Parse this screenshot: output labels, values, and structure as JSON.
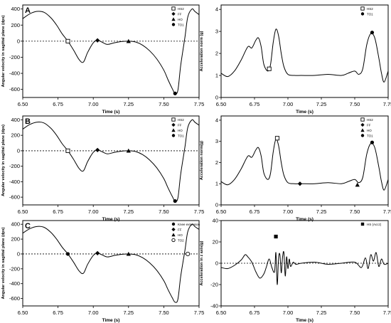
{
  "chart_data": [
    {
      "type": "line",
      "panel_label": "A",
      "xlabel": "Time (s)",
      "ylabel": "Angular velocity in sagittal plane (dps)",
      "xlim": [
        6.5,
        7.75
      ],
      "ylim": [
        -700,
        450
      ],
      "xticks": [
        "6.50",
        "6.75",
        "7.00",
        "7.25",
        "7.50",
        "7.75"
      ],
      "yticks": [
        "400",
        "200",
        "0",
        "-200",
        "-400",
        "-600"
      ],
      "ytick_values": [
        400,
        200,
        0,
        -200,
        -400,
        -600
      ],
      "zero_line": true,
      "series": [
        {
          "x": [
            6.5,
            6.55,
            6.6,
            6.65,
            6.7,
            6.74,
            6.78,
            6.82,
            6.86,
            6.9,
            6.93,
            6.96,
            7.0,
            7.03,
            7.06,
            7.1,
            7.15,
            7.2,
            7.25,
            7.3,
            7.35,
            7.4,
            7.45,
            7.5,
            7.53,
            7.56,
            7.58,
            7.6,
            7.62,
            7.65,
            7.67,
            7.7,
            7.72,
            7.75
          ],
          "y": [
            280,
            340,
            370,
            360,
            290,
            200,
            90,
            0,
            -110,
            -230,
            -260,
            -140,
            -20,
            10,
            -10,
            -40,
            -20,
            -5,
            0,
            -10,
            -50,
            -120,
            -220,
            -360,
            -480,
            -590,
            -650,
            -610,
            -300,
            50,
            300,
            400,
            370,
            330
          ]
        }
      ],
      "markers": [
        {
          "label": "HS2",
          "shape": "square-open",
          "x": 6.82,
          "y": 0
        },
        {
          "label": "FF",
          "shape": "diamond",
          "x": 7.03,
          "y": 10
        },
        {
          "label": "HO",
          "shape": "triangle",
          "x": 7.25,
          "y": 0
        },
        {
          "label": "TO1",
          "shape": "circle",
          "x": 7.58,
          "y": -650
        }
      ],
      "legend_placement": "top-right"
    },
    {
      "type": "line",
      "panel_label": "",
      "xlabel": "Time (s)",
      "ylabel": "Acceleration norm (g)",
      "xlim": [
        6.5,
        7.75
      ],
      "ylim": [
        0,
        4.2
      ],
      "xticks": [
        "6.50",
        "6.75",
        "7.00",
        "7.25",
        "7.50",
        "7.75"
      ],
      "yticks": [
        "4",
        "3",
        "2",
        "1",
        "0"
      ],
      "ytick_values": [
        4,
        3,
        2,
        1,
        0
      ],
      "zero_line": false,
      "series": [
        {
          "x": [
            6.5,
            6.55,
            6.6,
            6.65,
            6.7,
            6.73,
            6.76,
            6.78,
            6.8,
            6.82,
            6.85,
            6.87,
            6.89,
            6.91,
            6.93,
            6.95,
            6.97,
            7.0,
            7.05,
            7.1,
            7.2,
            7.3,
            7.4,
            7.45,
            7.5,
            7.53,
            7.56,
            7.59,
            7.62,
            7.65,
            7.68,
            7.7,
            7.72,
            7.75
          ],
          "y": [
            1.1,
            0.95,
            1.2,
            1.7,
            2.3,
            2.25,
            2.6,
            2.7,
            2.3,
            1.5,
            1.2,
            1.5,
            2.5,
            3.1,
            2.8,
            2.0,
            1.4,
            1.05,
            1.0,
            1.0,
            1.0,
            1.05,
            1.0,
            1.1,
            1.2,
            1.05,
            1.3,
            2.4,
            2.9,
            2.7,
            1.8,
            1.1,
            0.7,
            1.2
          ]
        }
      ],
      "markers": [
        {
          "label": "HS2",
          "shape": "square-open",
          "x": 6.86,
          "y": 1.3
        },
        {
          "label": "TO1",
          "shape": "circle",
          "x": 7.63,
          "y": 2.95
        }
      ],
      "legend_placement": "top-right"
    },
    {
      "type": "line",
      "panel_label": "B",
      "xlabel": "Time (s)",
      "ylabel": "Angular velocity in sagittal plane (dps)",
      "xlim": [
        6.5,
        7.75
      ],
      "ylim": [
        -700,
        450
      ],
      "xticks": [
        "6.50",
        "6.75",
        "7.00",
        "7.25",
        "7.50",
        "7.75"
      ],
      "yticks": [
        "400",
        "200",
        "0",
        "-200",
        "-400",
        "-600"
      ],
      "ytick_values": [
        400,
        200,
        0,
        -200,
        -400,
        -600
      ],
      "zero_line": true,
      "series": [
        {
          "x": [
            6.5,
            6.55,
            6.6,
            6.65,
            6.7,
            6.74,
            6.78,
            6.82,
            6.86,
            6.9,
            6.93,
            6.96,
            7.0,
            7.03,
            7.06,
            7.1,
            7.15,
            7.2,
            7.25,
            7.3,
            7.35,
            7.4,
            7.45,
            7.5,
            7.53,
            7.56,
            7.58,
            7.6,
            7.62,
            7.65,
            7.67,
            7.7,
            7.72,
            7.75
          ],
          "y": [
            280,
            340,
            370,
            360,
            290,
            200,
            90,
            0,
            -110,
            -230,
            -260,
            -140,
            -20,
            10,
            -10,
            -40,
            -20,
            -5,
            0,
            -10,
            -50,
            -120,
            -220,
            -360,
            -480,
            -590,
            -650,
            -610,
            -300,
            50,
            300,
            400,
            370,
            330
          ]
        }
      ],
      "markers": [
        {
          "label": "HS2",
          "shape": "square-open",
          "x": 6.82,
          "y": 0
        },
        {
          "label": "FF",
          "shape": "diamond",
          "x": 7.03,
          "y": 10
        },
        {
          "label": "HO",
          "shape": "triangle",
          "x": 7.25,
          "y": 0
        },
        {
          "label": "TO1",
          "shape": "circle",
          "x": 7.58,
          "y": -650
        }
      ],
      "legend_placement": "top-right"
    },
    {
      "type": "line",
      "panel_label": "",
      "xlabel": "Time (s)",
      "ylabel": "Acceleration norm(g)",
      "xlim": [
        6.5,
        7.75
      ],
      "ylim": [
        0,
        4.2
      ],
      "xticks": [
        "6.50",
        "6.75",
        "7.00",
        "7.25",
        "7.50",
        "7.75"
      ],
      "yticks": [
        "4",
        "3",
        "2",
        "1",
        "0"
      ],
      "ytick_values": [
        4,
        3,
        2,
        1,
        0
      ],
      "zero_line": false,
      "series": [
        {
          "x": [
            6.5,
            6.55,
            6.6,
            6.65,
            6.7,
            6.73,
            6.76,
            6.78,
            6.8,
            6.82,
            6.85,
            6.87,
            6.89,
            6.91,
            6.93,
            6.95,
            6.97,
            7.0,
            7.05,
            7.1,
            7.2,
            7.3,
            7.4,
            7.45,
            7.5,
            7.53,
            7.56,
            7.59,
            7.62,
            7.65,
            7.68,
            7.7,
            7.72,
            7.75
          ],
          "y": [
            1.1,
            0.95,
            1.2,
            1.7,
            2.3,
            2.25,
            2.6,
            2.7,
            2.3,
            1.5,
            1.2,
            1.5,
            2.5,
            3.1,
            2.8,
            2.0,
            1.4,
            1.05,
            1.0,
            1.0,
            1.0,
            1.05,
            1.0,
            1.1,
            1.2,
            1.05,
            1.3,
            2.4,
            2.9,
            2.7,
            1.8,
            1.1,
            0.7,
            1.2
          ]
        }
      ],
      "markers": [
        {
          "label": "HS2",
          "shape": "square-open",
          "x": 6.92,
          "y": 3.15
        },
        {
          "label": "FF",
          "shape": "diamond",
          "x": 7.09,
          "y": 1.0
        },
        {
          "label": "HO",
          "shape": "triangle",
          "x": 7.52,
          "y": 0.95
        },
        {
          "label": "TO1",
          "shape": "circle",
          "x": 7.63,
          "y": 2.95
        }
      ],
      "legend_placement": "top-right"
    },
    {
      "type": "line",
      "panel_label": "C",
      "xlabel": "Time (s)",
      "ylabel": "Angular velocity in sagittal plane (dps)",
      "xlim": [
        6.5,
        7.75
      ],
      "ylim": [
        -700,
        450
      ],
      "xticks": [
        "6.50",
        "6.75",
        "7.00",
        "7.25",
        "7.50",
        "7.75"
      ],
      "yticks": [
        "400",
        "200",
        "0",
        "-200",
        "-400",
        "-600"
      ],
      "ytick_values": [
        400,
        200,
        0,
        -200,
        -400,
        -600
      ],
      "zero_line": true,
      "series": [
        {
          "x": [
            6.5,
            6.55,
            6.6,
            6.65,
            6.7,
            6.74,
            6.78,
            6.82,
            6.86,
            6.9,
            6.93,
            6.96,
            7.0,
            7.03,
            7.06,
            7.1,
            7.15,
            7.2,
            7.25,
            7.3,
            7.35,
            7.4,
            7.45,
            7.5,
            7.53,
            7.56,
            7.58,
            7.6,
            7.62,
            7.65,
            7.67,
            7.7,
            7.72,
            7.75
          ],
          "y": [
            280,
            340,
            370,
            360,
            290,
            200,
            90,
            0,
            -110,
            -230,
            -260,
            -140,
            -20,
            10,
            -10,
            -40,
            -20,
            -5,
            0,
            -10,
            -50,
            -120,
            -220,
            -360,
            -480,
            -590,
            -650,
            -610,
            -300,
            50,
            300,
            400,
            370,
            330
          ]
        }
      ],
      "markers": [
        {
          "label": "Knee extension",
          "shape": "circle",
          "x": 6.82,
          "y": 0
        },
        {
          "label": "FF",
          "shape": "diamond",
          "x": 7.03,
          "y": 10
        },
        {
          "label": "HO",
          "shape": "triangle",
          "x": 7.25,
          "y": 0
        },
        {
          "label": "TO2",
          "shape": "circle-open",
          "x": 7.67,
          "y": 0
        }
      ],
      "legend_placement": "top-right"
    },
    {
      "type": "line",
      "panel_label": "",
      "xlabel": "Time (s)",
      "ylabel": "Acceleration in z axis(g)",
      "xlim": [
        6.5,
        7.75
      ],
      "ylim": [
        -40,
        40
      ],
      "xticks": [
        "6.50",
        "6.75",
        "7.00",
        "7.25",
        "7.50",
        "7.75"
      ],
      "yticks": [
        "40",
        "20",
        "0",
        "-20",
        "-40"
      ],
      "ytick_values": [
        40,
        20,
        0,
        -20,
        -40
      ],
      "zero_line": true,
      "series": [
        {
          "x": [
            6.5,
            6.55,
            6.6,
            6.65,
            6.68,
            6.7,
            6.73,
            6.76,
            6.79,
            6.82,
            6.84,
            6.86,
            6.88,
            6.9,
            6.91,
            6.92,
            6.93,
            6.94,
            6.95,
            6.96,
            6.97,
            6.98,
            6.99,
            7.0,
            7.01,
            7.02,
            7.04,
            7.06,
            7.1,
            7.2,
            7.3,
            7.4,
            7.5,
            7.55,
            7.58,
            7.6,
            7.62,
            7.64,
            7.66,
            7.68,
            7.7,
            7.72,
            7.75
          ],
          "y": [
            -4,
            -5,
            -2,
            3,
            8,
            6,
            1,
            -8,
            -14,
            -10,
            -3,
            4,
            -4,
            -8,
            10,
            -20,
            5,
            8,
            -9,
            6,
            10,
            -12,
            6,
            -5,
            4,
            -3,
            1,
            -1,
            0,
            1,
            -1,
            0,
            1,
            -4,
            5,
            -5,
            8,
            2,
            10,
            -3,
            4,
            -1,
            0
          ]
        }
      ],
      "markers": [
        {
          "label": "HS (Accz)",
          "shape": "square",
          "x": 6.91,
          "y": 25
        }
      ],
      "legend_placement": "top-right"
    }
  ]
}
